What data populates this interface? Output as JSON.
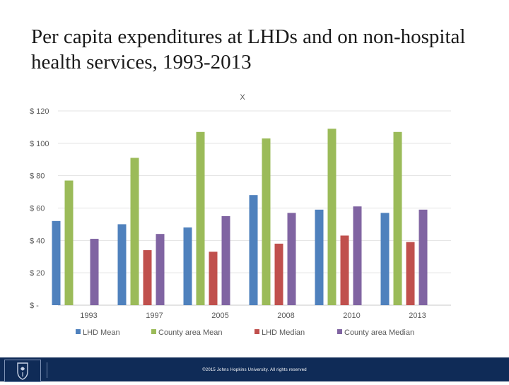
{
  "slide": {
    "title": "Per capita expenditures at LHDs and on non-hospital health services, 1993-2013",
    "copyright": "©2015 Johns Hopkins University. All rights reserved"
  },
  "colors": {
    "footer_bar": "#0f2b57",
    "series": [
      "#4f81bd",
      "#9bbb59",
      "#c0504d",
      "#8064a2"
    ]
  },
  "chart_data": {
    "type": "bar",
    "title": "X",
    "categories": [
      "1993",
      "1997",
      "2005",
      "2008",
      "2010",
      "2013"
    ],
    "y_tick_labels": [
      "$ -",
      "$ 20",
      "$ 40",
      "$ 60",
      "$ 80",
      "$ 100",
      "$ 120"
    ],
    "ylim": [
      0,
      120
    ],
    "grid": true,
    "legend_position": "bottom",
    "series": [
      {
        "name": "LHD Mean",
        "color": "#4f81bd",
        "values": [
          52,
          50,
          48,
          68,
          59,
          57
        ]
      },
      {
        "name": "County area Mean",
        "color": "#9bbb59",
        "values": [
          77,
          91,
          107,
          103,
          109,
          107
        ]
      },
      {
        "name": "LHD Median",
        "color": "#c0504d",
        "values": [
          null,
          34,
          33,
          38,
          43,
          39
        ]
      },
      {
        "name": "County area Median",
        "color": "#8064a2",
        "values": [
          41,
          44,
          55,
          57,
          61,
          59
        ]
      }
    ]
  }
}
